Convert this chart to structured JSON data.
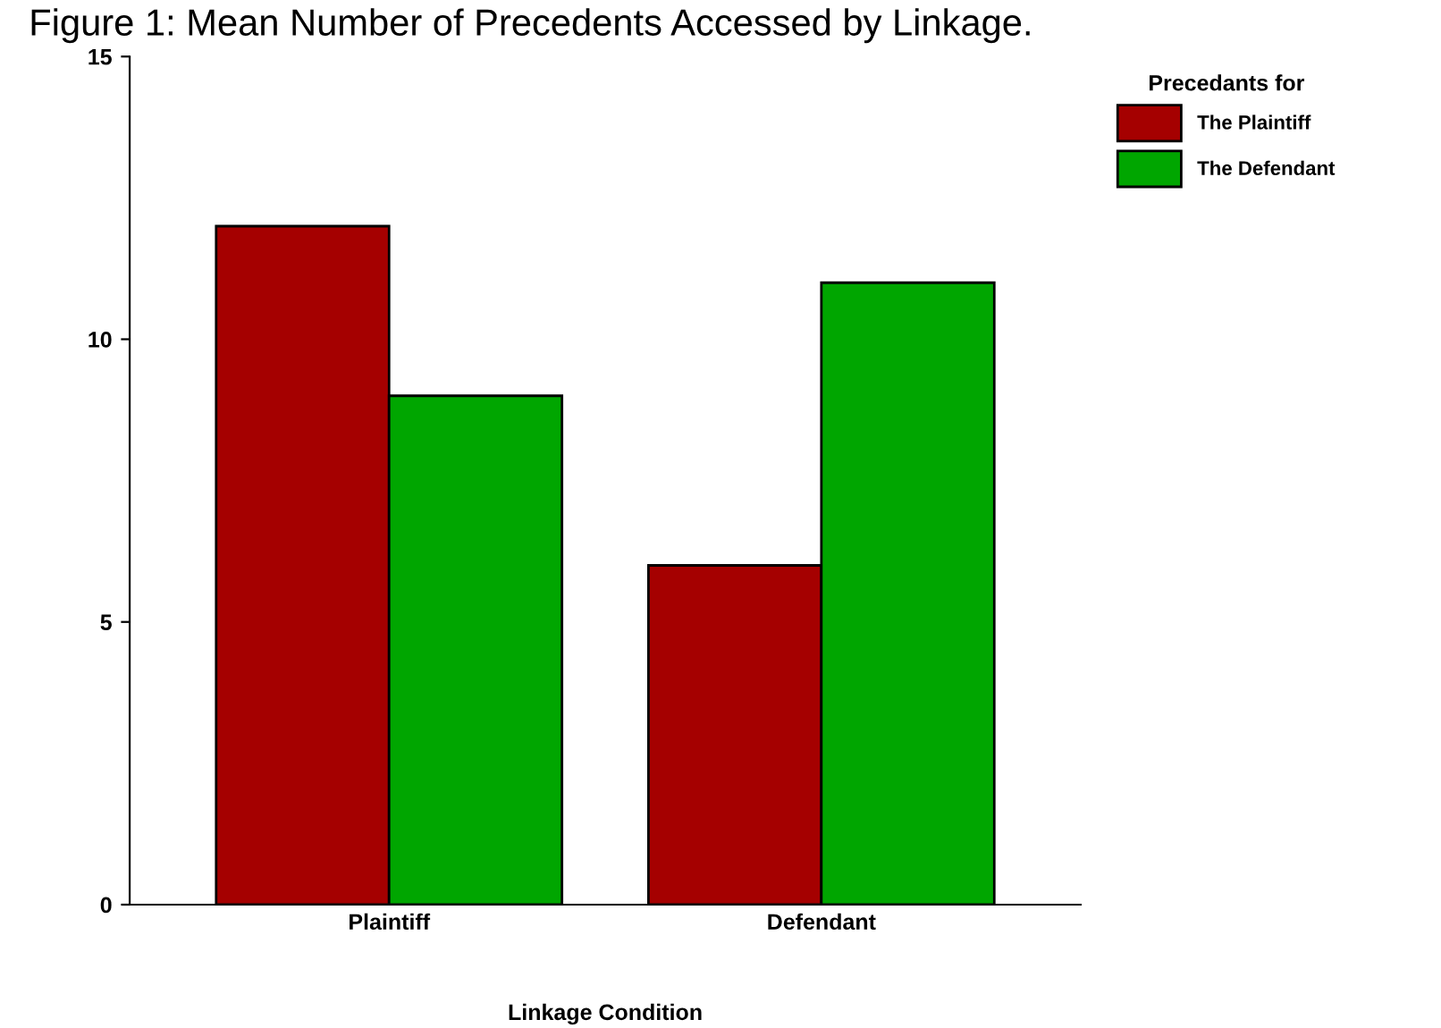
{
  "chart_data": {
    "type": "bar",
    "title": "Figure 1: Mean Number of Precedents Accessed by Linkage.",
    "xlabel": "Linkage Condition",
    "legend_title": "Precedants for",
    "categories": [
      "Plaintiff",
      "Defendant"
    ],
    "series": [
      {
        "name": "The Plaintiff",
        "color": "#a50000",
        "values": [
          12,
          6
        ]
      },
      {
        "name": "The Defendant",
        "color": "#00a600",
        "values": [
          9,
          11
        ]
      }
    ],
    "ylim": [
      0,
      15
    ],
    "yticks": [
      0,
      5,
      10,
      15
    ],
    "grid": false,
    "legend": "top right"
  }
}
